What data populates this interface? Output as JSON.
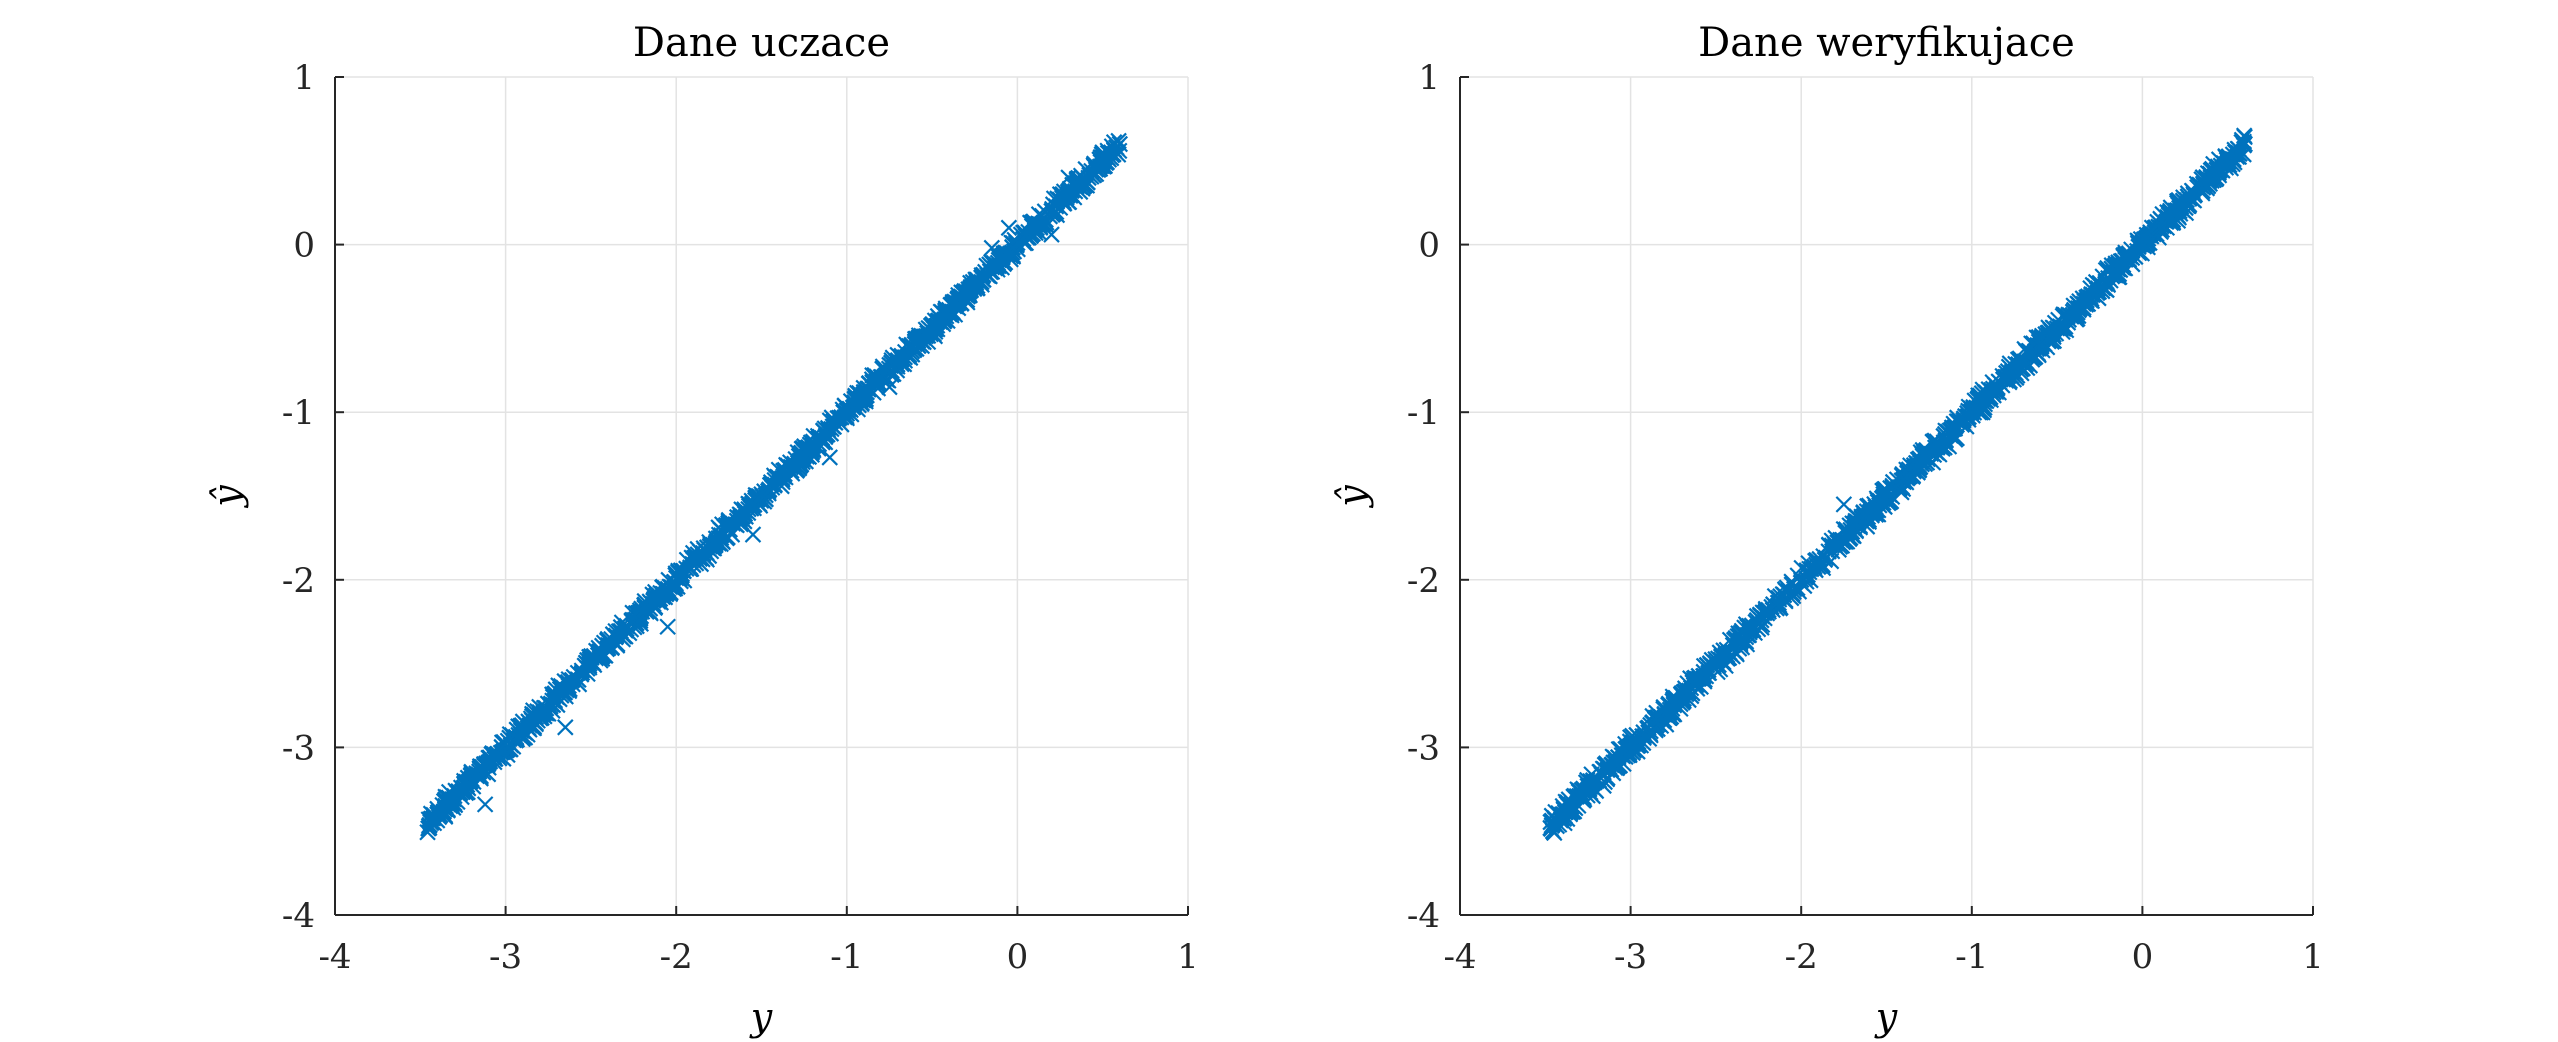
{
  "chart_data": [
    {
      "type": "scatter",
      "title": "Dane uczace",
      "xlabel": "y",
      "ylabel": "ŷ",
      "xlim": [
        -4,
        1
      ],
      "ylim": [
        -4,
        1
      ],
      "xticks": [
        "-4",
        "-3",
        "-2",
        "-1",
        "0",
        "1"
      ],
      "yticks": [
        "1",
        "0",
        "-1",
        "-2",
        "-3",
        "-4"
      ],
      "grid": true,
      "marker": "x",
      "color": "#0072BD",
      "series": [
        {
          "points": [
            [
              -3.45,
              -3.43
            ],
            [
              -3.4,
              -3.4
            ],
            [
              -3.35,
              -3.33
            ],
            [
              -3.3,
              -3.29
            ],
            [
              -3.25,
              -3.25
            ],
            [
              -3.2,
              -3.19
            ],
            [
              -3.15,
              -3.13
            ],
            [
              -3.1,
              -3.09
            ],
            [
              -3.12,
              -3.34
            ],
            [
              -3.05,
              -3.04
            ],
            [
              -3.0,
              -2.98
            ],
            [
              -2.9,
              -2.9
            ],
            [
              -2.8,
              -2.79
            ],
            [
              -2.7,
              -2.7
            ],
            [
              -2.65,
              -2.88
            ],
            [
              -2.6,
              -2.58
            ],
            [
              -2.5,
              -2.49
            ],
            [
              -2.4,
              -2.39
            ],
            [
              -2.3,
              -2.29
            ],
            [
              -2.2,
              -2.19
            ],
            [
              -2.15,
              -2.2
            ],
            [
              -2.1,
              -2.11
            ],
            [
              -2.05,
              -2.28
            ],
            [
              -2.0,
              -1.99
            ],
            [
              -1.9,
              -1.88
            ],
            [
              -1.8,
              -1.79
            ],
            [
              -1.7,
              -1.69
            ],
            [
              -1.6,
              -1.58
            ],
            [
              -1.55,
              -1.73
            ],
            [
              -1.5,
              -1.49
            ],
            [
              -1.4,
              -1.39
            ],
            [
              -1.3,
              -1.28
            ],
            [
              -1.2,
              -1.19
            ],
            [
              -1.1,
              -1.27
            ],
            [
              -1.05,
              -1.04
            ],
            [
              -1.0,
              -0.99
            ],
            [
              -0.9,
              -0.88
            ],
            [
              -0.85,
              -0.78
            ],
            [
              -0.8,
              -0.79
            ],
            [
              -0.75,
              -0.85
            ],
            [
              -0.7,
              -0.69
            ],
            [
              -0.6,
              -0.58
            ],
            [
              -0.5,
              -0.48
            ],
            [
              -0.4,
              -0.39
            ],
            [
              -0.3,
              -0.28
            ],
            [
              -0.2,
              -0.18
            ],
            [
              -0.15,
              -0.02
            ],
            [
              -0.1,
              -0.08
            ],
            [
              -0.05,
              0.1
            ],
            [
              0.0,
              0.01
            ],
            [
              0.05,
              0.05
            ],
            [
              0.1,
              0.1
            ],
            [
              0.15,
              0.12
            ],
            [
              0.2,
              0.2
            ],
            [
              0.25,
              0.3
            ],
            [
              0.25,
              0.22
            ],
            [
              0.3,
              0.4
            ],
            [
              0.35,
              0.35
            ],
            [
              0.4,
              0.45
            ],
            [
              0.45,
              0.47
            ],
            [
              0.5,
              0.52
            ],
            [
              0.55,
              0.55
            ],
            [
              0.58,
              0.58
            ],
            [
              0.6,
              0.6
            ],
            [
              0.2,
              0.06
            ]
          ]
        }
      ]
    },
    {
      "type": "scatter",
      "title": "Dane weryfikujace",
      "xlabel": "y",
      "ylabel": "ŷ",
      "xlim": [
        -4,
        1
      ],
      "ylim": [
        -4,
        1
      ],
      "xticks": [
        "-4",
        "-3",
        "-2",
        "-1",
        "0",
        "1"
      ],
      "yticks": [
        "1",
        "0",
        "-1",
        "-2",
        "-3",
        "-4"
      ],
      "grid": true,
      "marker": "x",
      "color": "#0072BD",
      "series": [
        {
          "points": [
            [
              -3.45,
              -3.45
            ],
            [
              -3.4,
              -3.4
            ],
            [
              -3.35,
              -3.34
            ],
            [
              -3.3,
              -3.29
            ],
            [
              -3.2,
              -3.2
            ],
            [
              -3.1,
              -3.09
            ],
            [
              -3.0,
              -2.99
            ],
            [
              -2.9,
              -2.89
            ],
            [
              -2.8,
              -2.8
            ],
            [
              -2.7,
              -2.69
            ],
            [
              -2.6,
              -2.59
            ],
            [
              -2.5,
              -2.5
            ],
            [
              -2.4,
              -2.39
            ],
            [
              -2.3,
              -2.3
            ],
            [
              -2.2,
              -2.2
            ],
            [
              -2.1,
              -2.09
            ],
            [
              -2.0,
              -2.0
            ],
            [
              -1.9,
              -1.89
            ],
            [
              -1.8,
              -1.8
            ],
            [
              -1.75,
              -1.55
            ],
            [
              -1.7,
              -1.69
            ],
            [
              -1.6,
              -1.6
            ],
            [
              -1.5,
              -1.49
            ],
            [
              -1.4,
              -1.4
            ],
            [
              -1.3,
              -1.3
            ],
            [
              -1.2,
              -1.19
            ],
            [
              -1.1,
              -1.09
            ],
            [
              -1.0,
              -1.0
            ],
            [
              -0.9,
              -0.9
            ],
            [
              -0.8,
              -0.79
            ],
            [
              -0.7,
              -0.7
            ],
            [
              -0.6,
              -0.6
            ],
            [
              -0.5,
              -0.5
            ],
            [
              -0.4,
              -0.39
            ],
            [
              -0.3,
              -0.3
            ],
            [
              -0.2,
              -0.2
            ],
            [
              -0.1,
              -0.09
            ],
            [
              0.0,
              0.0
            ],
            [
              0.1,
              0.1
            ],
            [
              0.2,
              0.2
            ],
            [
              0.3,
              0.3
            ],
            [
              0.4,
              0.4
            ],
            [
              0.5,
              0.5
            ],
            [
              0.55,
              0.55
            ],
            [
              0.6,
              0.6
            ]
          ]
        }
      ]
    }
  ]
}
